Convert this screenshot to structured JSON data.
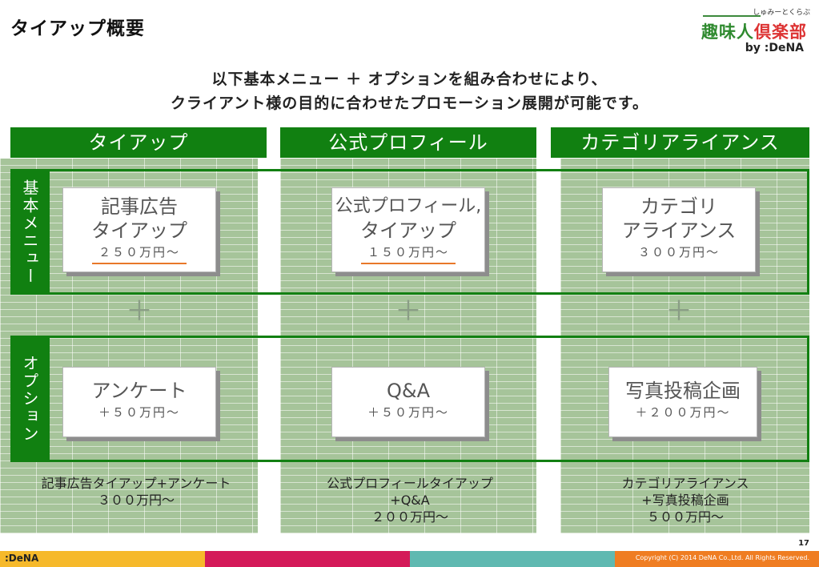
{
  "page": {
    "title": "タイアップ概要",
    "page_number": "17"
  },
  "logo": {
    "kana": "しゅみーとくらぶ",
    "name_green": "趣味人",
    "name_red": "倶楽部",
    "by": "by :DeNA"
  },
  "intro": {
    "line1": "以下基本メニュー ＋ オプションを組み合わせにより、",
    "line2": "クライアント様の目的に合わせたプロモーション展開が可能です。"
  },
  "columns": [
    {
      "header": "タイアップ",
      "basic": {
        "line1": "記事広告",
        "line2": "タイアップ",
        "price": "２５０万円～"
      },
      "option": {
        "name": "アンケート",
        "price": "＋５０万円～"
      },
      "summary": [
        "記事広告タイアップ+アンケート",
        "３００万円～"
      ]
    },
    {
      "header": "公式プロフィール",
      "basic": {
        "line1": "公式プロフィール,",
        "line2": "タイアップ",
        "price": "１５０万円～"
      },
      "option": {
        "name": "Q&A",
        "price": "＋５０万円～"
      },
      "summary": [
        "公式プロフィールタイアップ",
        "+Q&A",
        "２００万円～"
      ]
    },
    {
      "header": "カテゴリアライアンス",
      "basic": {
        "line1": "カテゴリ",
        "line2": "アライアンス",
        "price": "３００万円～"
      },
      "option": {
        "name": "写真投稿企画",
        "price": "＋２００万円～"
      },
      "summary": [
        "カテゴリアライアンス",
        "+写真投稿企画",
        "５００万円～"
      ]
    }
  ],
  "rows": {
    "basic_label": "基本メニュー",
    "option_label": "オプション",
    "plus": "＋"
  },
  "footer": {
    "brand": ":DeNA",
    "copyright": "Copyright (C) 2014 DeNA Co.,Ltd. All Rights Reserved."
  },
  "colors": {
    "header_green": "#118011",
    "grid_green": "#a6c49a",
    "accent_orange": "#e8782a",
    "footer_segments": [
      "#f6b92b",
      "#d41a59",
      "#5fb9b1",
      "#ef7d22"
    ]
  }
}
